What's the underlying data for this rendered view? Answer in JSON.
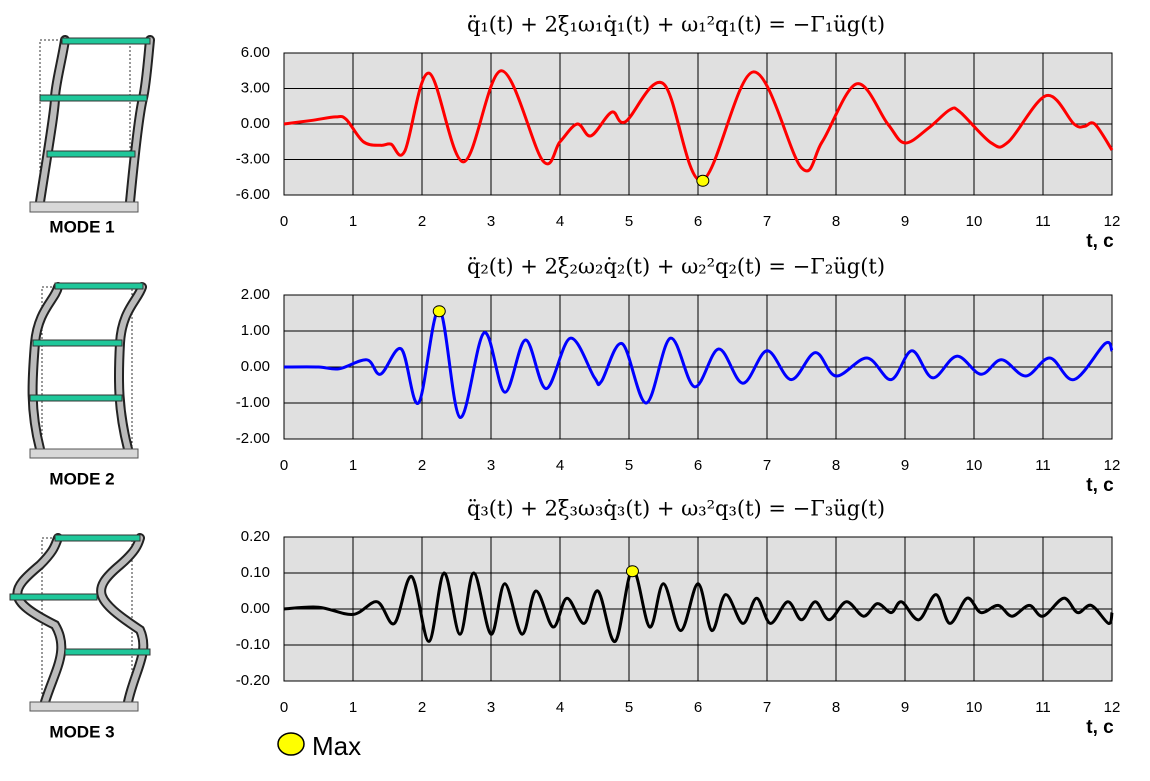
{
  "chart_data": [
    {
      "type": "line",
      "title": "q̈₁(t) + 2ξ₁ω₁q̇₁(t) + ω₁²q₁(t) = −Γ₁üg(t)",
      "mode_label": "MODE 1",
      "xlabel": "t, c",
      "x": [
        0,
        0.4,
        0.75,
        0.9,
        1.15,
        1.4,
        1.55,
        1.75,
        2.1,
        2.6,
        3.15,
        3.75,
        4.0,
        4.25,
        4.45,
        4.75,
        4.95,
        5.5,
        6.05,
        6.8,
        7.5,
        7.8,
        8.3,
        8.75,
        9.0,
        9.35,
        9.65,
        9.8,
        10.25,
        10.5,
        11.05,
        11.45,
        11.6,
        11.75,
        12
      ],
      "values": [
        0,
        0.3,
        0.6,
        0.4,
        -1.5,
        -1.8,
        -1.7,
        -2.3,
        4.3,
        -3.2,
        4.5,
        -3.1,
        -1.5,
        0.0,
        -1.0,
        1.0,
        0.2,
        3.4,
        -4.8,
        4.4,
        -3.7,
        -1.5,
        3.4,
        0.0,
        -1.6,
        -0.3,
        1.2,
        1.0,
        -1.6,
        -1.5,
        2.4,
        0.0,
        -0.2,
        0.0,
        -2.2
      ],
      "color": "#ff0000",
      "max": {
        "x": 6.07,
        "y": -4.8
      },
      "xlim": [
        0,
        12
      ],
      "xticks": [
        0,
        1,
        2,
        3,
        4,
        5,
        6,
        7,
        8,
        9,
        10,
        11,
        12
      ],
      "ylim": [
        -6,
        6
      ],
      "yticks": [
        {
          "value": 6,
          "label": "6.00"
        },
        {
          "value": 3,
          "label": "3.00"
        },
        {
          "value": 0,
          "label": "0.00"
        },
        {
          "value": -3,
          "label": "-3.00"
        },
        {
          "value": -6,
          "label": "-6.00"
        }
      ],
      "grid": true
    },
    {
      "type": "line",
      "title": "q̈₂(t) + 2ξ₂ω₂q̇₂(t) + ω₂²q₂(t) = −Γ₂üg(t)",
      "mode_label": "MODE 2",
      "xlabel": "t, c",
      "x": [
        0,
        0.5,
        0.8,
        1.2,
        1.4,
        1.7,
        1.95,
        2.25,
        2.55,
        2.9,
        3.2,
        3.5,
        3.8,
        4.15,
        4.5,
        4.6,
        4.9,
        5.25,
        5.6,
        5.95,
        6.3,
        6.65,
        7.0,
        7.35,
        7.7,
        8.0,
        8.45,
        8.8,
        9.1,
        9.4,
        9.75,
        10.1,
        10.4,
        10.75,
        11.1,
        11.45,
        11.9,
        12
      ],
      "values": [
        0,
        0,
        -0.05,
        0.2,
        -0.2,
        0.5,
        -1.0,
        1.6,
        -1.4,
        0.95,
        -0.7,
        0.75,
        -0.6,
        0.8,
        -0.3,
        -0.4,
        0.65,
        -1.0,
        0.8,
        -0.55,
        0.5,
        -0.45,
        0.45,
        -0.35,
        0.4,
        -0.25,
        0.25,
        -0.35,
        0.45,
        -0.3,
        0.3,
        -0.2,
        0.2,
        -0.25,
        0.25,
        -0.35,
        0.65,
        0.45
      ],
      "color": "#0000ff",
      "max": {
        "x": 2.25,
        "y": 1.55
      },
      "xlim": [
        0,
        12
      ],
      "xticks": [
        0,
        1,
        2,
        3,
        4,
        5,
        6,
        7,
        8,
        9,
        10,
        11,
        12
      ],
      "ylim": [
        -2,
        2
      ],
      "yticks": [
        {
          "value": 2,
          "label": "2.00"
        },
        {
          "value": 1,
          "label": "1.00"
        },
        {
          "value": 0,
          "label": "0.00"
        },
        {
          "value": -1,
          "label": "-1.00"
        },
        {
          "value": -2,
          "label": "-2.00"
        }
      ],
      "grid": true
    },
    {
      "type": "line",
      "title": "q̈₃(t) + 2ξ₃ω₃q̇₃(t) + ω₃²q₃(t) = −Γ₃üg(t)",
      "mode_label": "MODE 3",
      "xlabel": "t, c",
      "x": [
        0,
        0.5,
        1.0,
        1.35,
        1.6,
        1.85,
        2.1,
        2.32,
        2.55,
        2.75,
        3.0,
        3.2,
        3.45,
        3.65,
        3.9,
        4.1,
        4.35,
        4.55,
        4.8,
        5.05,
        5.3,
        5.5,
        5.75,
        6.0,
        6.2,
        6.4,
        6.65,
        6.85,
        7.05,
        7.3,
        7.5,
        7.7,
        7.9,
        8.15,
        8.4,
        8.6,
        8.8,
        8.95,
        9.2,
        9.45,
        9.65,
        9.9,
        10.1,
        10.35,
        10.55,
        10.8,
        11.0,
        11.3,
        11.5,
        11.7,
        11.95,
        12
      ],
      "values": [
        0,
        0.005,
        -0.015,
        0.02,
        -0.04,
        0.09,
        -0.09,
        0.1,
        -0.07,
        0.1,
        -0.07,
        0.07,
        -0.07,
        0.05,
        -0.05,
        0.03,
        -0.04,
        0.05,
        -0.09,
        0.11,
        -0.05,
        0.07,
        -0.06,
        0.07,
        -0.06,
        0.04,
        -0.04,
        0.03,
        -0.04,
        0.02,
        -0.03,
        0.02,
        -0.03,
        0.02,
        -0.02,
        0.015,
        -0.01,
        0.02,
        -0.03,
        0.04,
        -0.04,
        0.03,
        -0.01,
        0.01,
        -0.02,
        0.01,
        -0.02,
        0.03,
        -0.01,
        0.01,
        -0.04,
        -0.01
      ],
      "color": "#000000",
      "max": {
        "x": 5.05,
        "y": 0.105
      },
      "xlim": [
        0,
        12
      ],
      "xticks": [
        0,
        1,
        2,
        3,
        4,
        5,
        6,
        7,
        8,
        9,
        10,
        11,
        12
      ],
      "ylim": [
        -0.2,
        0.2
      ],
      "yticks": [
        {
          "value": 0.2,
          "label": "0.20"
        },
        {
          "value": 0.1,
          "label": "0.10"
        },
        {
          "value": 0,
          "label": "0.00"
        },
        {
          "value": -0.1,
          "label": "-0.10"
        },
        {
          "value": -0.2,
          "label": "-0.20"
        }
      ],
      "grid": true
    }
  ],
  "legend": {
    "label": "Max",
    "color": "#ffff00"
  }
}
